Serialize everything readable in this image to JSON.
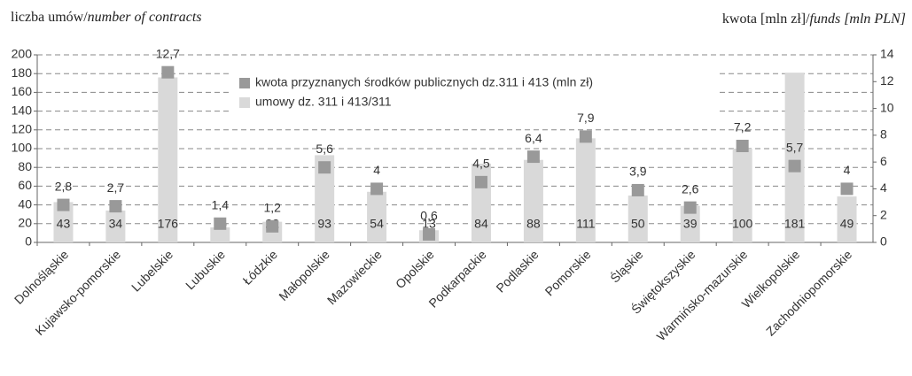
{
  "chart_data": {
    "type": "bar",
    "ylabel": [
      "liczba umów/",
      "number of contracts"
    ],
    "y2label": [
      "kwota [mln zł]/",
      "funds [mln PLN]"
    ],
    "categories": [
      "Dolnośląskie",
      "Kujawsko-pomorskie",
      "Lubelskie",
      "Lubuskie",
      "Łódzkie",
      "Małopolskie",
      "Mazowieckie",
      "Opolskie",
      "Podkarpackie",
      "Podlaskie",
      "Pomorskie",
      "Śląskie",
      "Świętokszyskie",
      "Warmińsko-mazurskie",
      "Wielkopolskie",
      "Zachodniopomorskie"
    ],
    "series": [
      {
        "name": "kwota przyznanych środków publicznych  dz.311 i 413 (mln zł)",
        "color": "#999999",
        "axis": "y2",
        "type": "marker",
        "values": [
          2.8,
          2.7,
          12.7,
          1.4,
          1.2,
          5.6,
          4,
          0.6,
          4.5,
          6.4,
          7.9,
          3.9,
          2.6,
          7.2,
          5.7,
          4
        ],
        "value_labels": [
          "2,8",
          "2,7",
          "12,7",
          "1,4",
          "1,2",
          "5,6",
          "4",
          "0,6",
          "4,5",
          "6,4",
          "7,9",
          "3,9",
          "2,6",
          "7,2",
          "5,7",
          "4"
        ]
      },
      {
        "name": "umowy dz. 311 i 413/311",
        "color": "#d9d9d9",
        "type": "bar",
        "values": [
          43,
          34,
          176,
          16,
          22,
          93,
          54,
          13,
          84,
          88,
          111,
          50,
          39,
          100,
          181,
          49
        ]
      }
    ],
    "ylim": [
      0,
      200
    ],
    "yticks": [
      0,
      20,
      40,
      60,
      80,
      100,
      120,
      140,
      160,
      180,
      200
    ],
    "y2lim": [
      0,
      14
    ],
    "y2ticks": [
      0,
      2,
      4,
      6,
      8,
      10,
      12,
      14
    ],
    "grid": true
  }
}
